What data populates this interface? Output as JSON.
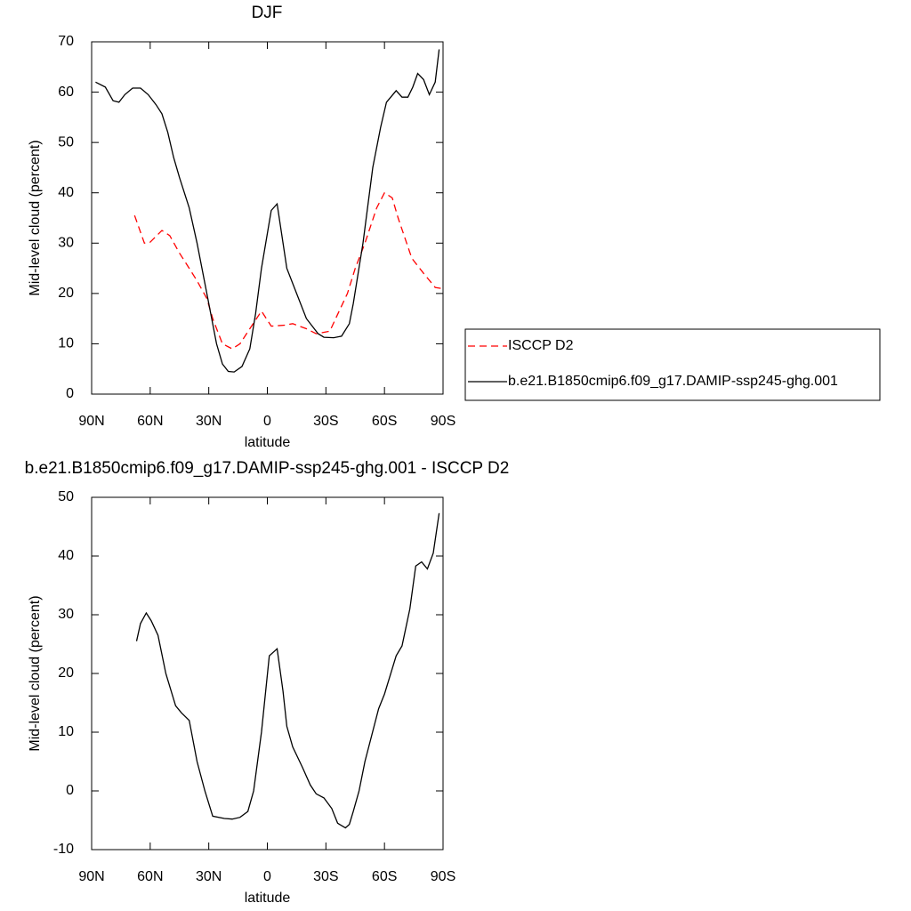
{
  "chart_data": [
    {
      "type": "line",
      "title": "DJF",
      "xlabel": "latitude",
      "ylabel": "Mid-level cloud (percent)",
      "xlim": [
        90,
        -90
      ],
      "ylim": [
        0,
        70
      ],
      "xticks": [
        {
          "value": 90,
          "label": "90N"
        },
        {
          "value": 60,
          "label": "60N"
        },
        {
          "value": 30,
          "label": "30N"
        },
        0,
        {
          "value": -30,
          "label": "30S"
        },
        {
          "value": -60,
          "label": "60S"
        },
        {
          "value": -90,
          "label": "90S"
        }
      ],
      "yticks": [
        0,
        10,
        20,
        30,
        40,
        50,
        60,
        70
      ],
      "legend": "right",
      "series": [
        {
          "name": "ISCCP D2",
          "color": "#ff0000",
          "dash": true,
          "x": [
            68,
            63,
            60,
            54,
            50,
            45,
            40,
            36,
            31,
            28,
            23,
            18,
            14,
            9,
            3,
            -2,
            -9,
            -13,
            -20,
            -25,
            -32,
            -35,
            -41,
            -45,
            -50,
            -56,
            -60,
            -64,
            -67,
            -74,
            -80,
            -86,
            -89
          ],
          "values": [
            35.5,
            30,
            30.2,
            32.5,
            31.5,
            28,
            25,
            22.5,
            19,
            15,
            10,
            9,
            10,
            13,
            16.5,
            13.5,
            13.7,
            14,
            13,
            12,
            12.5,
            15,
            20,
            25,
            30,
            37,
            40,
            39,
            35,
            27,
            24,
            21.2,
            21
          ]
        },
        {
          "name": "b.e21.B1850cmip6.f09_g17.DAMIP-ssp245-ghg.001",
          "color": "#000000",
          "dash": false,
          "x": [
            88,
            83,
            79,
            76,
            73,
            69,
            65,
            61,
            57,
            54,
            51,
            48,
            45,
            40,
            36,
            31,
            26,
            23,
            20,
            17,
            13,
            9,
            6,
            3,
            -2,
            -5,
            -10,
            -15,
            -20,
            -26,
            -29,
            -34,
            -38,
            -42,
            -44,
            -49,
            -54,
            -58,
            -61,
            -66,
            -69,
            -72,
            -74.5,
            -77,
            -80,
            -83,
            -86,
            -88
          ],
          "values": [
            62,
            61,
            58.3,
            58,
            59.5,
            60.8,
            60.8,
            59.5,
            57.5,
            55.7,
            52,
            47,
            43,
            37,
            30,
            20,
            10,
            6,
            4.5,
            4.4,
            5.5,
            9,
            16,
            25,
            36.5,
            37.8,
            25,
            20,
            15,
            12,
            11.3,
            11.2,
            11.5,
            14,
            18,
            30,
            45,
            53,
            58,
            60.3,
            59,
            59,
            61,
            63.7,
            62.5,
            59.5,
            62,
            68.5
          ]
        }
      ]
    },
    {
      "type": "line",
      "title": "b.e21.B1850cmip6.f09_g17.DAMIP-ssp245-ghg.001 - ISCCP D2",
      "xlabel": "latitude",
      "ylabel": "Mid-level cloud (percent)",
      "xlim": [
        90,
        -90
      ],
      "ylim": [
        -10,
        50
      ],
      "xticks": [
        {
          "value": 90,
          "label": "90N"
        },
        {
          "value": 60,
          "label": "60N"
        },
        {
          "value": 30,
          "label": "30N"
        },
        0,
        {
          "value": -30,
          "label": "30S"
        },
        {
          "value": -60,
          "label": "60S"
        },
        {
          "value": -90,
          "label": "90S"
        }
      ],
      "yticks": [
        -10,
        0,
        10,
        20,
        30,
        40,
        50
      ],
      "series": [
        {
          "color": "#000000",
          "dash": false,
          "x": [
            67,
            65,
            62,
            59.5,
            56,
            52,
            47,
            44,
            40,
            36,
            32,
            28,
            22,
            18,
            14,
            10,
            7,
            3,
            -1,
            -5,
            -8,
            -10,
            -13,
            -18,
            -22,
            -25,
            -29,
            -33,
            -36,
            -40,
            -42,
            -44,
            -47,
            -50,
            -57,
            -60,
            -66,
            -69,
            -73,
            -76,
            -79,
            -82,
            -85,
            -88
          ],
          "values": [
            25.5,
            28.5,
            30.3,
            29,
            26.5,
            20,
            14.5,
            13.3,
            12,
            5,
            0,
            -4.3,
            -4.7,
            -4.8,
            -4.5,
            -3.5,
            0,
            10,
            23,
            24.2,
            17,
            11,
            7.5,
            4,
            1,
            -0.5,
            -1.2,
            -3,
            -5.5,
            -6.3,
            -5.7,
            -3.5,
            0,
            5,
            14,
            16.5,
            23,
            24.7,
            31,
            38.3,
            39,
            37.8,
            40.5,
            47.3
          ]
        }
      ]
    }
  ]
}
